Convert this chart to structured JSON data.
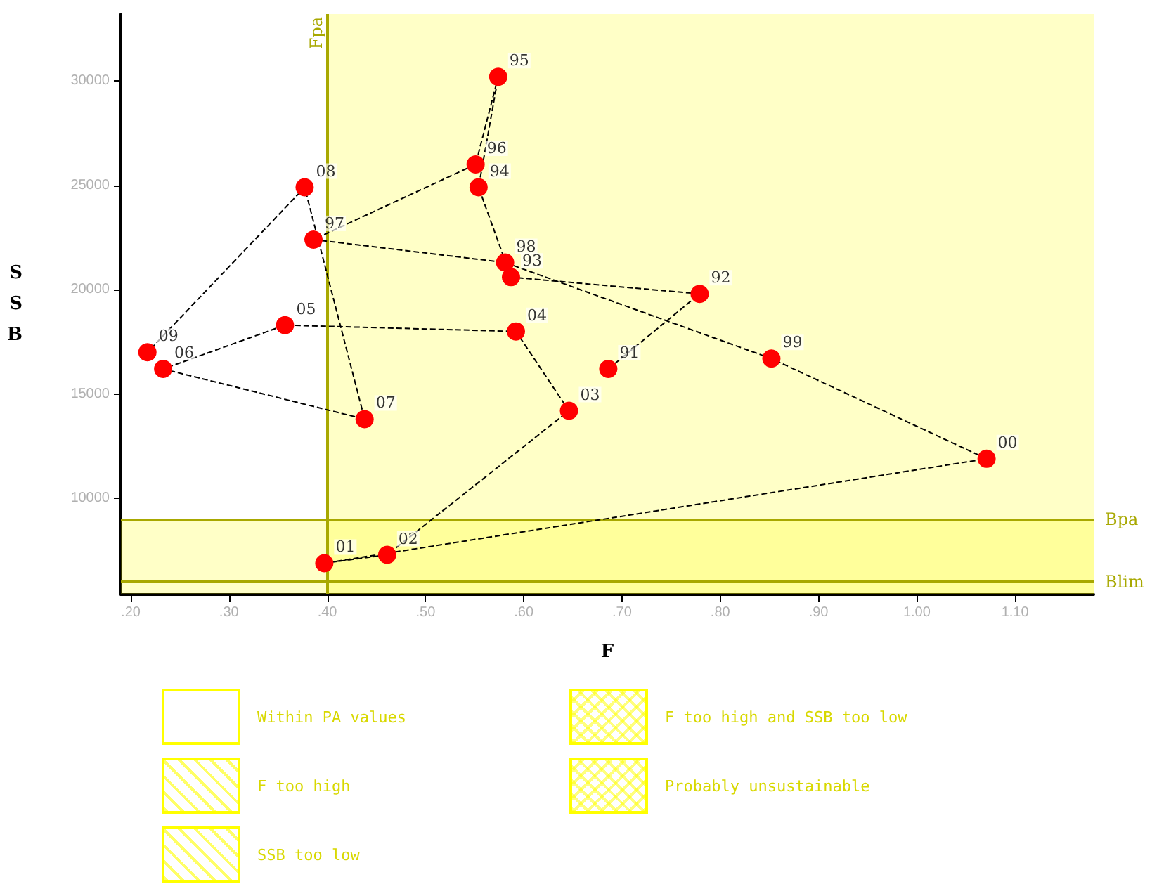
{
  "chart_data": {
    "type": "line",
    "xlabel": "F",
    "ylabel": "SSB",
    "xlim": [
      0.19,
      1.18
    ],
    "ylim": [
      5400,
      33200
    ],
    "xticks": [
      {
        "value": 0.2,
        "label": ".20"
      },
      {
        "value": 0.3,
        "label": ".30"
      },
      {
        "value": 0.4,
        "label": ".40"
      },
      {
        "value": 0.5,
        "label": ".50"
      },
      {
        "value": 0.6,
        "label": ".60"
      },
      {
        "value": 0.7,
        "label": ".70"
      },
      {
        "value": 0.8,
        "label": ".80"
      },
      {
        "value": 0.9,
        "label": ".90"
      },
      {
        "value": 1.0,
        "label": "1.00"
      },
      {
        "value": 1.1,
        "label": "1.10"
      }
    ],
    "yticks": [
      10000,
      15000,
      20000,
      25000,
      30000
    ],
    "grid": false,
    "marker": "circle",
    "line_style": "dashed",
    "legend": "bottom",
    "series": [
      {
        "color": "#ff0000",
        "x": [
          0.686,
          0.779,
          0.587,
          0.554,
          0.574,
          0.551,
          0.386,
          0.581,
          0.852,
          1.071,
          0.397,
          0.461,
          0.646,
          0.592,
          0.357,
          0.233,
          0.438,
          0.377,
          0.217
        ],
        "values": [
          16200,
          19800,
          20600,
          24900,
          30200,
          26000,
          22400,
          21300,
          16700,
          11900,
          6900,
          7300,
          14200,
          18000,
          18300,
          16200,
          13800,
          24900,
          17000
        ]
      }
    ],
    "ref_lines": [
      {
        "axis": "x",
        "value": 0.4,
        "label": "Fpa",
        "color": "#a8a800"
      },
      {
        "axis": "y",
        "value": 9000,
        "label": "Bpa",
        "color": "#a8a800"
      },
      {
        "axis": "y",
        "value": 6000,
        "label": "Blim",
        "color": "#a8a800"
      }
    ],
    "bands": [
      {
        "axis": "x",
        "from": 0.4,
        "to": 1.18,
        "label": "F too high",
        "color": "#ffff00"
      },
      {
        "axis": "y",
        "from": 5400,
        "to": 9000,
        "label": "SSB too low",
        "color": "#ffff00"
      }
    ],
    "annotations": [
      "Within PA values",
      "F too high and SSB too low",
      "Probably unsustainable",
      {
        "text": "91",
        "x": 0.686,
        "y": 16200
      },
      {
        "text": "92",
        "x": 0.779,
        "y": 19800
      },
      {
        "text": "93",
        "x": 0.587,
        "y": 20600
      },
      {
        "text": "94",
        "x": 0.554,
        "y": 24900
      },
      {
        "text": "95",
        "x": 0.574,
        "y": 30200
      },
      {
        "text": "96",
        "x": 0.551,
        "y": 26000
      },
      {
        "text": "97",
        "x": 0.386,
        "y": 22400
      },
      {
        "text": "98",
        "x": 0.581,
        "y": 21300
      },
      {
        "text": "99",
        "x": 0.852,
        "y": 16700
      },
      {
        "text": "00",
        "x": 1.071,
        "y": 11900
      },
      {
        "text": "01",
        "x": 0.397,
        "y": 6900
      },
      {
        "text": "02",
        "x": 0.461,
        "y": 7300
      },
      {
        "text": "03",
        "x": 0.646,
        "y": 14200
      },
      {
        "text": "04",
        "x": 0.592,
        "y": 18000
      },
      {
        "text": "05",
        "x": 0.357,
        "y": 18300
      },
      {
        "text": "06",
        "x": 0.233,
        "y": 16200
      },
      {
        "text": "07",
        "x": 0.438,
        "y": 13800
      },
      {
        "text": "08",
        "x": 0.377,
        "y": 24900
      },
      {
        "text": "09",
        "x": 0.217,
        "y": 17000
      }
    ]
  }
}
